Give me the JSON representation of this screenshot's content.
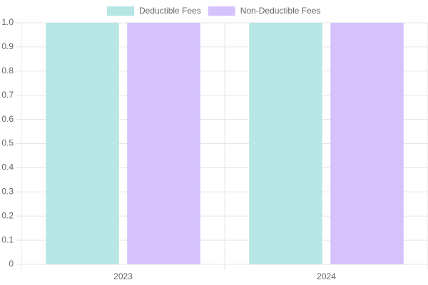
{
  "chart_data": {
    "type": "bar",
    "categories": [
      "2023",
      "2024"
    ],
    "series": [
      {
        "name": "Deductible Fees",
        "color": "#b6e7e5",
        "border": "#4bc0c0",
        "values": [
          1,
          1
        ]
      },
      {
        "name": "Non-Deductible Fees",
        "color": "#d5c2fd",
        "border": "#9966ff",
        "values": [
          1,
          1
        ]
      }
    ],
    "ylim": [
      0,
      1
    ],
    "yticks": [
      0,
      0.1,
      0.2,
      0.3,
      0.4,
      0.5,
      0.6,
      0.7,
      0.8,
      0.9,
      {
        "value": 1,
        "label": "1.0"
      }
    ],
    "grid": true,
    "legend": "top"
  }
}
